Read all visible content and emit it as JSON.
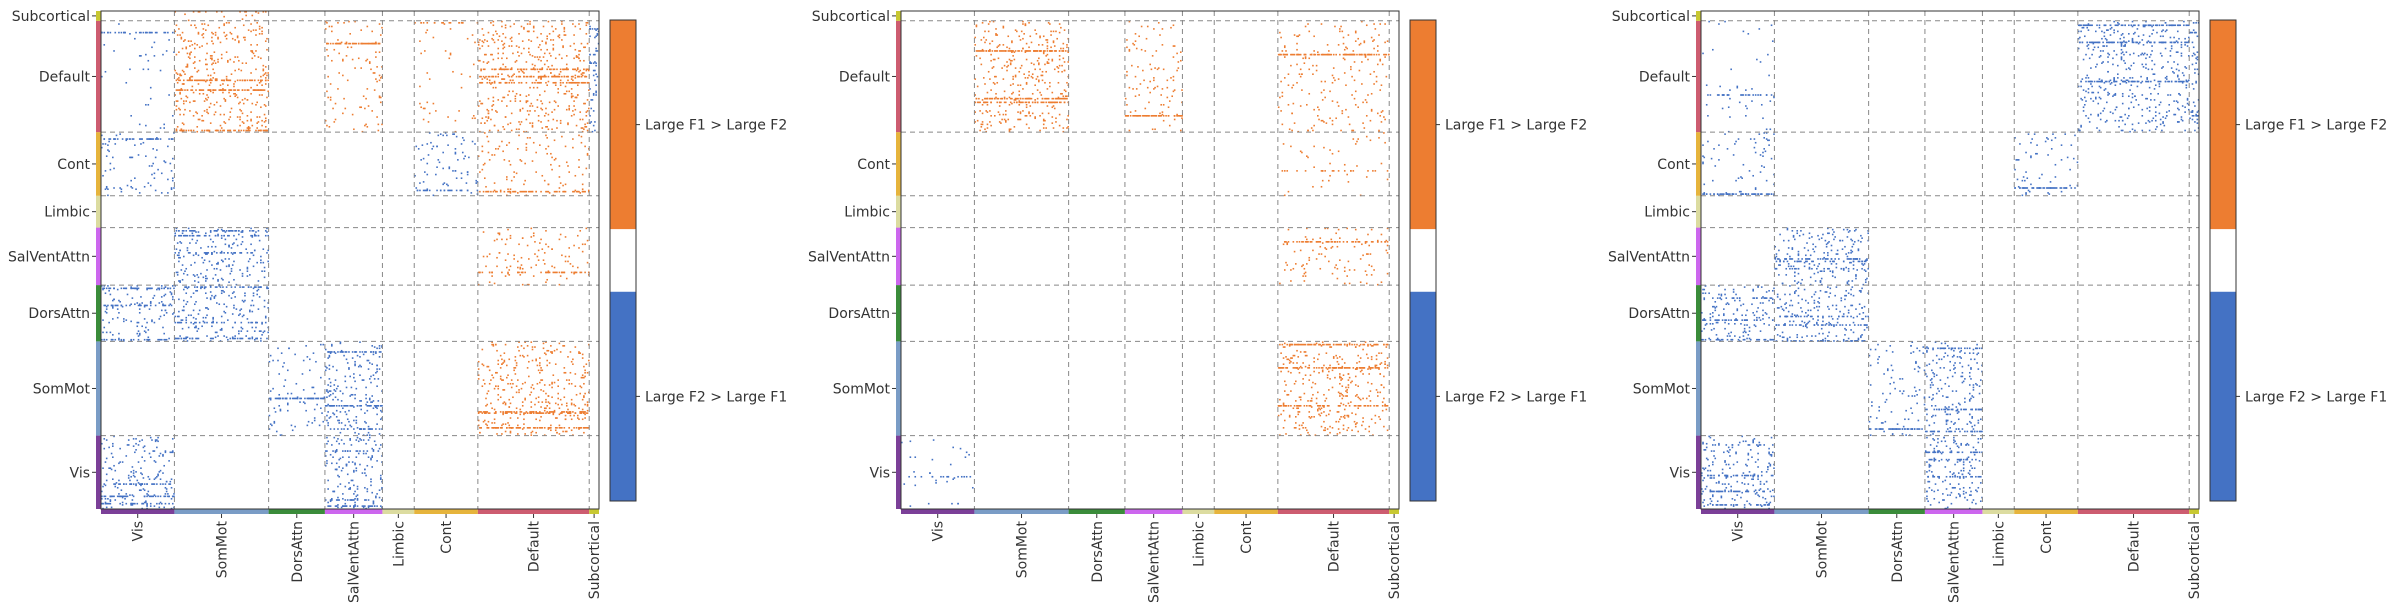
{
  "networks": [
    "Vis",
    "SomMot",
    "DorsAttn",
    "SalVentAttn",
    "Limbic",
    "Cont",
    "Default",
    "Subcortical"
  ],
  "network_sizes": [
    60,
    77,
    46,
    47,
    26,
    52,
    91,
    8
  ],
  "network_colors": [
    "#7b3f98",
    "#7a9cc6",
    "#3a8c3a",
    "#cc66ee",
    "#dcdca0",
    "#e6b43c",
    "#cd5c70",
    "#c8c832"
  ],
  "colorbar": {
    "top_color": "#ed7d31",
    "mid_color": "#ffffff",
    "bottom_color": "#4472c4",
    "top_label": "Large F1 > Large F2",
    "bottom_label": "Large F2 > Large F1"
  },
  "chart_data": [
    {
      "type": "heatmap",
      "panel": "left",
      "xlabel": "",
      "ylabel": "",
      "categories": [
        "Vis",
        "SomMot",
        "DorsAttn",
        "SalVentAttn",
        "Limbic",
        "Cont",
        "Default",
        "Subcortical"
      ],
      "legend": [
        "Large F1 > Large F2",
        "Large F2 > Large F1"
      ],
      "block_density": {
        "orange": [
          {
            "row": "Default",
            "col": "SomMot",
            "level": "high"
          },
          {
            "row": "Default",
            "col": "Default",
            "level": "high"
          },
          {
            "row": "SomMot",
            "col": "Default",
            "level": "high"
          },
          {
            "row": "SalVentAttn",
            "col": "Default",
            "level": "medium"
          },
          {
            "row": "Cont",
            "col": "Default",
            "level": "medium"
          },
          {
            "row": "Default",
            "col": "SalVentAttn",
            "level": "medium"
          },
          {
            "row": "Default",
            "col": "Cont",
            "level": "low"
          },
          {
            "row": "Subcortical",
            "col": "SomMot",
            "level": "medium"
          }
        ],
        "blue": [
          {
            "row": "Vis",
            "col": "Vis",
            "level": "high"
          },
          {
            "row": "DorsAttn",
            "col": "Vis",
            "level": "high"
          },
          {
            "row": "DorsAttn",
            "col": "SomMot",
            "level": "high"
          },
          {
            "row": "SalVentAttn",
            "col": "SomMot",
            "level": "high"
          },
          {
            "row": "SomMot",
            "col": "SalVentAttn",
            "level": "high"
          },
          {
            "row": "Vis",
            "col": "SalVentAttn",
            "level": "high"
          },
          {
            "row": "SomMot",
            "col": "DorsAttn",
            "level": "medium"
          },
          {
            "row": "Cont",
            "col": "Vis",
            "level": "medium"
          },
          {
            "row": "Default",
            "col": "Subcortical",
            "level": "high"
          },
          {
            "row": "Cont",
            "col": "Cont",
            "level": "medium"
          },
          {
            "row": "Default",
            "col": "Vis",
            "level": "low"
          }
        ]
      }
    },
    {
      "type": "heatmap",
      "panel": "middle",
      "xlabel": "",
      "ylabel": "",
      "categories": [
        "Vis",
        "SomMot",
        "DorsAttn",
        "SalVentAttn",
        "Limbic",
        "Cont",
        "Default",
        "Subcortical"
      ],
      "legend": [
        "Large F1 > Large F2",
        "Large F2 > Large F1"
      ],
      "block_density": {
        "orange": [
          {
            "row": "Default",
            "col": "SomMot",
            "level": "high"
          },
          {
            "row": "SomMot",
            "col": "Default",
            "level": "high"
          },
          {
            "row": "Default",
            "col": "Default",
            "level": "medium"
          },
          {
            "row": "SalVentAttn",
            "col": "Default",
            "level": "medium"
          },
          {
            "row": "Default",
            "col": "SalVentAttn",
            "level": "medium"
          },
          {
            "row": "Cont",
            "col": "Default",
            "level": "low"
          }
        ],
        "blue": [
          {
            "row": "Vis",
            "col": "Vis",
            "level": "low"
          }
        ]
      }
    },
    {
      "type": "heatmap",
      "panel": "right",
      "xlabel": "",
      "ylabel": "",
      "categories": [
        "Vis",
        "SomMot",
        "DorsAttn",
        "SalVentAttn",
        "Limbic",
        "Cont",
        "Default",
        "Subcortical"
      ],
      "legend": [
        "Large F1 > Large F2",
        "Large F2 > Large F1"
      ],
      "block_density": {
        "orange": [],
        "blue": [
          {
            "row": "Vis",
            "col": "Vis",
            "level": "high"
          },
          {
            "row": "DorsAttn",
            "col": "Vis",
            "level": "high"
          },
          {
            "row": "DorsAttn",
            "col": "SomMot",
            "level": "high"
          },
          {
            "row": "SalVentAttn",
            "col": "SomMot",
            "level": "high"
          },
          {
            "row": "SomMot",
            "col": "SalVentAttn",
            "level": "high"
          },
          {
            "row": "Vis",
            "col": "SalVentAttn",
            "level": "high"
          },
          {
            "row": "Cont",
            "col": "Vis",
            "level": "medium"
          },
          {
            "row": "Default",
            "col": "Default",
            "level": "high"
          },
          {
            "row": "Default",
            "col": "Subcortical",
            "level": "high"
          },
          {
            "row": "Cont",
            "col": "Cont",
            "level": "medium"
          },
          {
            "row": "SomMot",
            "col": "DorsAttn",
            "level": "medium"
          },
          {
            "row": "Default",
            "col": "Vis",
            "level": "low"
          }
        ]
      }
    }
  ]
}
